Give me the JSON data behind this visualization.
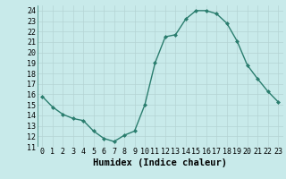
{
  "x": [
    0,
    1,
    2,
    3,
    4,
    5,
    6,
    7,
    8,
    9,
    10,
    11,
    12,
    13,
    14,
    15,
    16,
    17,
    18,
    19,
    20,
    21,
    22,
    23
  ],
  "y": [
    15.8,
    14.8,
    14.1,
    13.7,
    13.5,
    12.5,
    11.8,
    11.5,
    12.1,
    12.5,
    15.0,
    19.0,
    21.5,
    21.7,
    23.2,
    24.0,
    24.0,
    23.7,
    22.8,
    21.1,
    18.8,
    17.5,
    16.3,
    15.3
  ],
  "line_color": "#2a7d6e",
  "marker": "D",
  "marker_size": 2,
  "bg_color": "#c8eaea",
  "grid_color": "#b4d4d4",
  "xlabel": "Humidex (Indice chaleur)",
  "ylim": [
    11,
    24.5
  ],
  "xlim": [
    -0.5,
    23.5
  ],
  "yticks": [
    11,
    12,
    13,
    14,
    15,
    16,
    17,
    18,
    19,
    20,
    21,
    22,
    23,
    24
  ],
  "xticks": [
    0,
    1,
    2,
    3,
    4,
    5,
    6,
    7,
    8,
    9,
    10,
    11,
    12,
    13,
    14,
    15,
    16,
    17,
    18,
    19,
    20,
    21,
    22,
    23
  ],
  "xtick_labels": [
    "0",
    "1",
    "2",
    "3",
    "4",
    "5",
    "6",
    "7",
    "8",
    "9",
    "10",
    "11",
    "12",
    "13",
    "14",
    "15",
    "16",
    "17",
    "18",
    "19",
    "20",
    "21",
    "22",
    "23"
  ],
  "tick_fontsize": 6,
  "label_fontsize": 7.5,
  "linewidth": 1.0
}
